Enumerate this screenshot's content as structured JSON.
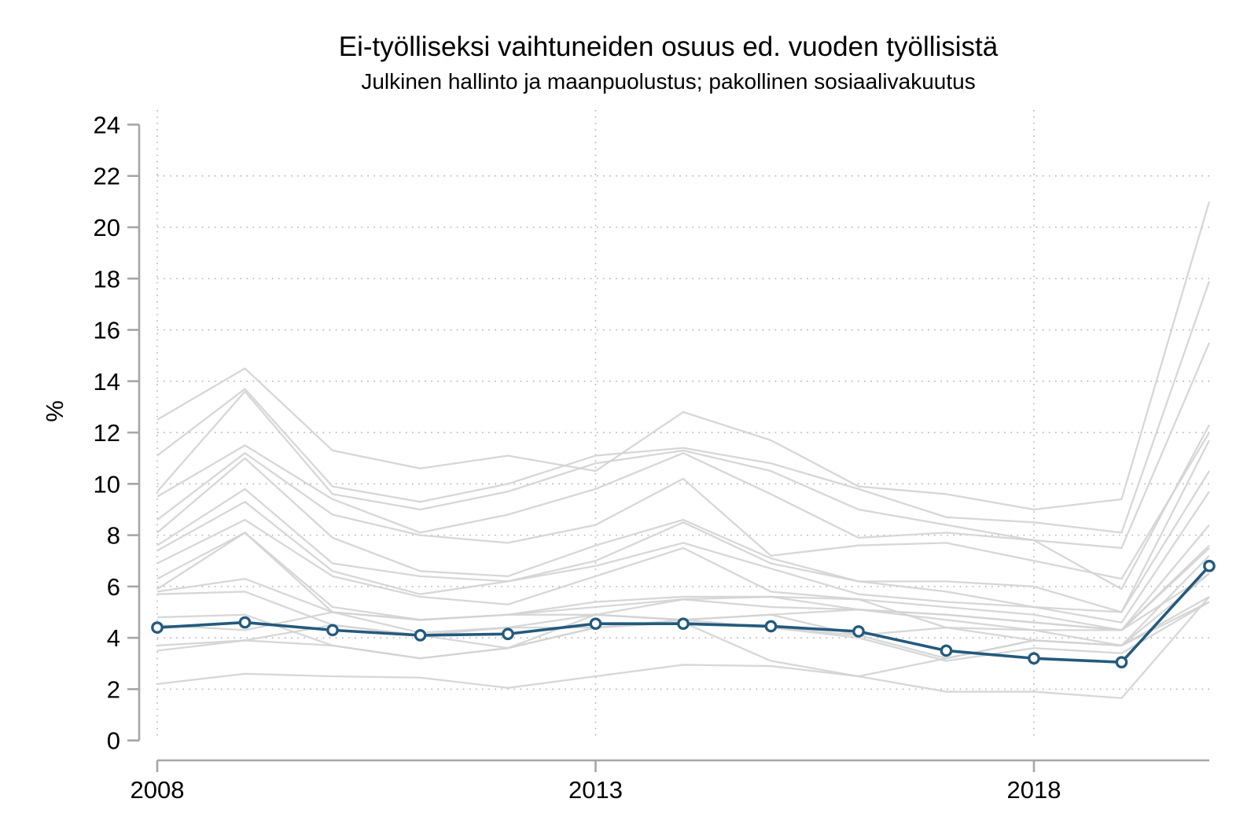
{
  "title": "Ei-työlliseksi vaihtuneiden osuus ed. vuoden työllisistä",
  "subtitle": "Julkinen hallinto ja maanpuolustus; pakollinen sosiaalivakuutus",
  "colors": {
    "highlight_line": "#235a7d",
    "marker_fill": "#ffffff",
    "background_line": "#d3d3d3",
    "axis": "#a6a6a6",
    "gridline": "#b3b3b3",
    "text": "#000000"
  },
  "chart_data": {
    "type": "line",
    "title": "Ei-työlliseksi vaihtuneiden osuus ed. vuoden työllisistä",
    "subtitle": "Julkinen hallinto ja maanpuolustus; pakollinen sosiaalivakuutus",
    "xlabel": "",
    "ylabel": "%",
    "ylim": [
      0,
      24
    ],
    "y_ticks": [
      0,
      2,
      4,
      6,
      8,
      10,
      12,
      14,
      16,
      18,
      20,
      22,
      24
    ],
    "y_gridlines": [
      2,
      4,
      6,
      8,
      10,
      12,
      14,
      16,
      18,
      20,
      22
    ],
    "x": [
      2008,
      2009,
      2010,
      2011,
      2012,
      2013,
      2014,
      2015,
      2016,
      2017,
      2018,
      2019,
      2020
    ],
    "x_ticks": [
      2008,
      2013,
      2018
    ],
    "x_tick_labels": [
      "2008",
      "2013",
      "2018"
    ],
    "grid": "dotted",
    "legend": "none",
    "highlight_series": {
      "name": "Julkinen hallinto ja maanpuolustus; pakollinen sosiaalivakuutus",
      "marker": "open-circle",
      "values": [
        4.4,
        4.6,
        4.3,
        4.1,
        4.15,
        4.55,
        4.55,
        4.45,
        4.25,
        3.5,
        3.2,
        3.05,
        6.8
      ]
    },
    "background_series": [
      {
        "values": [
          12.5,
          14.5,
          11.3,
          10.6,
          11.1,
          10.5,
          12.8,
          11.7,
          9.9,
          9.6,
          9.0,
          9.4,
          21.0
        ]
      },
      {
        "values": [
          11.1,
          13.7,
          9.9,
          9.3,
          10.0,
          11.1,
          11.4,
          10.8,
          9.8,
          8.7,
          8.5,
          8.1,
          17.9
        ]
      },
      {
        "values": [
          9.7,
          13.6,
          9.6,
          9.0,
          9.7,
          10.8,
          11.3,
          10.5,
          9.0,
          8.4,
          7.8,
          7.5,
          15.5
        ]
      },
      {
        "values": [
          9.5,
          11.5,
          9.4,
          8.1,
          8.8,
          9.8,
          11.2,
          9.6,
          7.9,
          8.1,
          7.8,
          5.9,
          12.3
        ]
      },
      {
        "values": [
          8.6,
          11.2,
          8.8,
          8.0,
          7.7,
          8.4,
          10.2,
          7.2,
          7.6,
          7.7,
          7.0,
          6.3,
          12.0
        ]
      },
      {
        "values": [
          8.1,
          11.0,
          7.9,
          6.6,
          6.4,
          7.6,
          8.6,
          7.1,
          6.2,
          6.2,
          6.0,
          5.0,
          11.7
        ]
      },
      {
        "values": [
          7.6,
          9.8,
          6.9,
          6.4,
          6.2,
          7.0,
          8.5,
          6.9,
          6.2,
          5.8,
          5.2,
          5.0,
          10.5
        ]
      },
      {
        "values": [
          7.4,
          9.3,
          6.6,
          5.7,
          6.2,
          6.8,
          7.7,
          6.7,
          5.7,
          5.4,
          5.2,
          4.6,
          9.7
        ]
      },
      {
        "values": [
          6.9,
          8.6,
          6.4,
          5.6,
          5.3,
          6.4,
          7.5,
          5.8,
          5.5,
          5.2,
          4.9,
          4.3,
          8.4
        ]
      },
      {
        "values": [
          6.3,
          8.1,
          5.2,
          4.7,
          4.9,
          5.4,
          5.6,
          5.6,
          5.1,
          4.9,
          4.6,
          4.3,
          7.6
        ]
      },
      {
        "values": [
          5.9,
          8.1,
          5.0,
          4.7,
          4.9,
          5.2,
          5.5,
          5.2,
          5.1,
          4.7,
          4.3,
          3.7,
          7.2
        ]
      },
      {
        "values": [
          5.8,
          6.3,
          5.0,
          4.2,
          4.4,
          4.9,
          4.7,
          4.9,
          4.1,
          4.4,
          3.9,
          3.7,
          6.5
        ]
      },
      {
        "values": [
          5.7,
          5.8,
          4.5,
          4.1,
          4.4,
          4.4,
          4.7,
          4.4,
          4.1,
          3.2,
          3.9,
          3.7,
          5.6
        ]
      },
      {
        "values": [
          4.8,
          4.9,
          3.7,
          3.2,
          3.6,
          4.4,
          4.6,
          3.1,
          2.5,
          3.2,
          3.9,
          3.7,
          5.4
        ]
      },
      {
        "values": [
          4.5,
          4.3,
          5.0,
          4.7,
          4.9,
          4.9,
          4.7,
          4.9,
          5.1,
          4.9,
          4.6,
          4.3,
          7.5
        ]
      },
      {
        "values": [
          3.7,
          3.9,
          3.7,
          3.2,
          3.6,
          4.9,
          5.5,
          5.6,
          5.5,
          4.4,
          4.3,
          4.3,
          6.5
        ]
      },
      {
        "values": [
          3.5,
          3.9,
          4.5,
          4.1,
          3.6,
          4.4,
          4.6,
          4.4,
          4.0,
          3.1,
          3.6,
          3.4,
          5.4
        ]
      },
      {
        "values": [
          2.2,
          2.6,
          2.5,
          2.45,
          2.05,
          2.5,
          2.95,
          2.9,
          2.5,
          1.9,
          1.9,
          1.65,
          5.6
        ]
      }
    ]
  }
}
